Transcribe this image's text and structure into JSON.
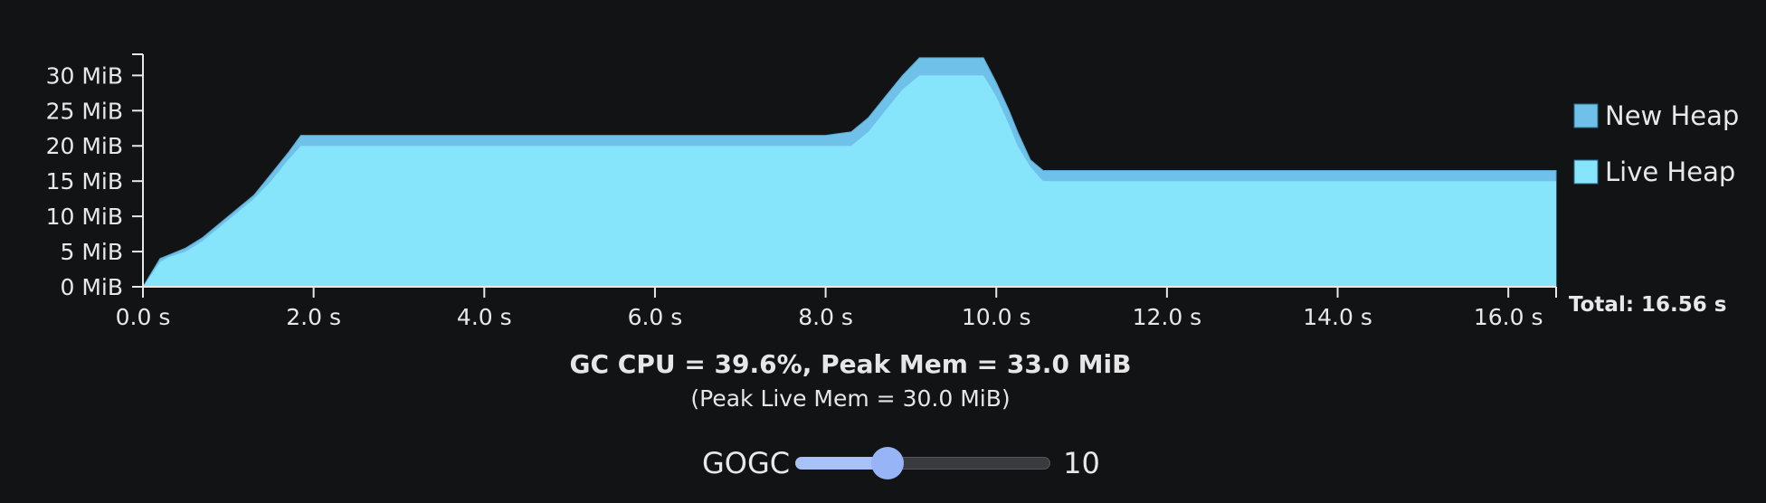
{
  "chart_data": {
    "type": "area",
    "xlabel": "",
    "ylabel": "",
    "xlim": [
      0,
      16.56
    ],
    "ylim": [
      0,
      33
    ],
    "y_ticks": [
      0,
      5,
      10,
      15,
      20,
      25,
      30
    ],
    "y_tick_labels": [
      "0 MiB",
      "5 MiB",
      "10 MiB",
      "15 MiB",
      "20 MiB",
      "25 MiB",
      "30 MiB"
    ],
    "x_ticks": [
      0,
      2,
      4,
      6,
      8,
      10,
      12,
      14,
      16
    ],
    "x_tick_labels": [
      "0.0 s",
      "2.0 s",
      "4.0 s",
      "6.0 s",
      "8.0 s",
      "10.0 s",
      "12.0 s",
      "14.0 s",
      "16.0 s"
    ],
    "total_label": "Total: 16.56 s",
    "legend_position": "right",
    "series": [
      {
        "name": "New Heap",
        "color": "#6fc1e9",
        "x": [
          0,
          0.2,
          0.3,
          0.5,
          0.7,
          0.9,
          1.1,
          1.3,
          1.5,
          1.7,
          1.85,
          1.9,
          2.0,
          4.0,
          6.0,
          8.0,
          8.3,
          8.5,
          8.7,
          8.9,
          9.1,
          9.3,
          9.5,
          9.7,
          9.85,
          10.0,
          10.15,
          10.25,
          10.4,
          10.55,
          10.7,
          12.0,
          14.0,
          16.0,
          16.56
        ],
        "y": [
          0,
          4,
          4.5,
          5.5,
          7,
          9,
          11,
          13,
          16,
          19,
          21.5,
          21.5,
          21.5,
          21.5,
          21.5,
          21.5,
          22,
          24,
          27,
          30,
          32.5,
          32.5,
          32.5,
          32.5,
          32.5,
          29,
          25,
          22,
          18,
          16.5,
          16.5,
          16.5,
          16.5,
          16.5,
          16.5
        ]
      },
      {
        "name": "Live Heap",
        "color": "#86e4fb",
        "x": [
          0,
          0.2,
          0.3,
          0.5,
          0.7,
          0.9,
          1.1,
          1.3,
          1.5,
          1.7,
          1.85,
          1.9,
          2.0,
          4.0,
          6.0,
          8.0,
          8.3,
          8.5,
          8.7,
          8.9,
          9.1,
          9.3,
          9.5,
          9.7,
          9.85,
          10.0,
          10.15,
          10.25,
          10.4,
          10.55,
          10.7,
          12.0,
          14.0,
          16.0,
          16.56
        ],
        "y": [
          0,
          3.5,
          4.2,
          5,
          6.5,
          8.5,
          10.5,
          12.5,
          15,
          18,
          20,
          20,
          20,
          20,
          20,
          20,
          20,
          22,
          25,
          28,
          30,
          30,
          30,
          30,
          30,
          27,
          23,
          20,
          17,
          15,
          15,
          15,
          15,
          15,
          15
        ]
      }
    ]
  },
  "stats": {
    "main": "GC CPU = 39.6%, Peak Mem = 33.0 MiB",
    "sub": "(Peak Live Mem = 30.0 MiB)"
  },
  "control": {
    "label": "GOGC",
    "value": "10",
    "slider_fraction": 0.36
  }
}
